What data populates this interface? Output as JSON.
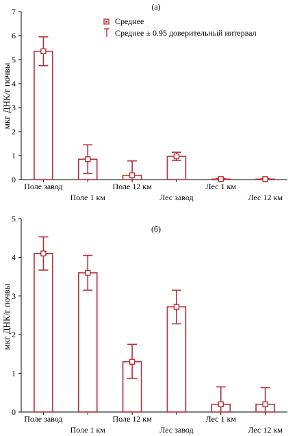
{
  "colors": {
    "bar": "#b33038",
    "axis": "#000000",
    "background": "#ffffff"
  },
  "legend": {
    "mean_label": "Среднее",
    "ci_label": "Среднее ± 0.95 доверительный интервал"
  },
  "chart_data": [
    {
      "type": "bar",
      "panel_label": "(а)",
      "ylabel": "мкг ДНК/г почвы",
      "ylim": [
        0,
        7
      ],
      "yticks": [
        0,
        1,
        2,
        3,
        4,
        5,
        6,
        7
      ],
      "categories": [
        "Поле завод",
        "Поле 1 км",
        "Поле 12 км",
        "Лес завод",
        "Лес 1 км",
        "Лес 12 км"
      ],
      "series": [
        {
          "values": [
            5.35,
            0.85,
            0.18,
            0.97,
            0.02,
            0.02
          ],
          "ci_low": [
            4.75,
            0.25,
            0.0,
            0.8,
            0.0,
            0.0
          ],
          "ci_high": [
            5.95,
            1.45,
            0.78,
            1.14,
            0.05,
            0.05
          ]
        }
      ],
      "legend_position": "top"
    },
    {
      "type": "bar",
      "panel_label": "(б)",
      "ylabel": "мкг ДНК/г почвы",
      "ylim": [
        0,
        5
      ],
      "yticks": [
        0,
        1,
        2,
        3,
        4,
        5
      ],
      "categories": [
        "Поле завод",
        "Поле 1 км",
        "Поле 12 км",
        "Лес завод",
        "Лес 1 км",
        "Лес 12 км"
      ],
      "series": [
        {
          "values": [
            4.1,
            3.6,
            1.3,
            2.72,
            0.2,
            0.2
          ],
          "ci_low": [
            3.67,
            3.15,
            0.87,
            2.28,
            0.0,
            0.0
          ],
          "ci_high": [
            4.53,
            4.05,
            1.75,
            3.15,
            0.65,
            0.63
          ]
        }
      ]
    }
  ]
}
